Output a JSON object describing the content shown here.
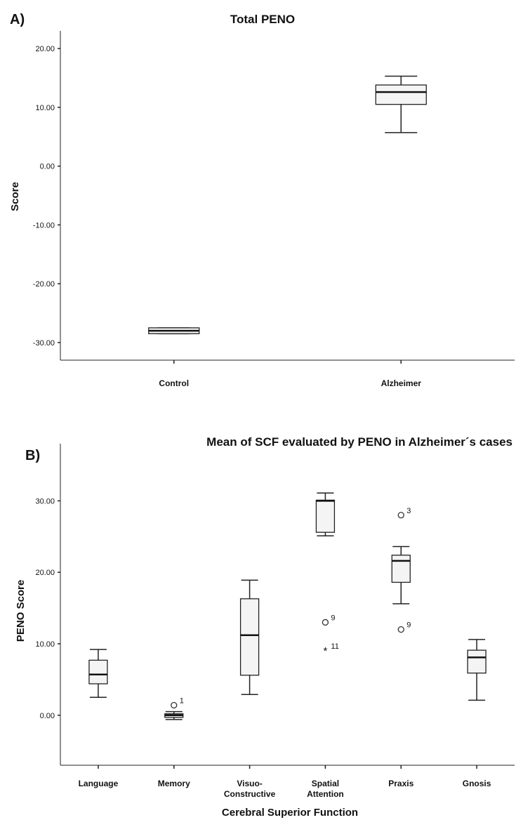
{
  "chart_data": [
    {
      "type": "boxplot",
      "panel_label": "A)",
      "title": "Total PENO",
      "xlabel": "",
      "ylabel": "Score",
      "ylim": [
        -33,
        23
      ],
      "yticks": [
        "20.00",
        "10.00",
        "0.00",
        "-10.00",
        "-20.00",
        "-30.00"
      ],
      "ytick_values": [
        20,
        10,
        0,
        -10,
        -20,
        -30
      ],
      "grid": false,
      "categories": [
        "Control",
        "Alzheimer"
      ],
      "boxes": [
        {
          "category": "Control",
          "min": -28.5,
          "q1": -28.5,
          "median": -28.0,
          "q3": -27.5,
          "max": -27.5,
          "outliers": []
        },
        {
          "category": "Alzheimer",
          "min": 5.7,
          "q1": 10.5,
          "median": 12.6,
          "q3": 13.8,
          "max": 15.3,
          "outliers": []
        }
      ]
    },
    {
      "type": "boxplot",
      "panel_label": "B)",
      "title": "Mean of SCF evaluated by PENO in Alzheimer´s cases",
      "xlabel": "Cerebral Superior Function",
      "ylabel": "PENO Score",
      "ylim": [
        -7,
        38
      ],
      "yticks": [
        "30.00",
        "20.00",
        "10.00",
        "0.00"
      ],
      "ytick_values": [
        30,
        20,
        10,
        0
      ],
      "grid": false,
      "categories": [
        "Language",
        "Memory",
        "Visuo-\nConstructive",
        "Spatial\nAttention",
        "Praxis",
        "Gnosis"
      ],
      "boxes": [
        {
          "category": "Language",
          "min": 2.5,
          "q1": 4.4,
          "median": 5.7,
          "q3": 7.7,
          "max": 9.2,
          "outliers": []
        },
        {
          "category": "Memory",
          "min": -0.6,
          "q1": -0.3,
          "median": 0.0,
          "q3": 0.2,
          "max": 0.5,
          "outliers": [
            {
              "value": 1.4,
              "label": "1",
              "marker": "circle"
            }
          ]
        },
        {
          "category": "Visuo-Constructive",
          "min": 2.9,
          "q1": 5.6,
          "median": 11.2,
          "q3": 16.3,
          "max": 18.9,
          "outliers": []
        },
        {
          "category": "Spatial Attention",
          "min": 25.1,
          "q1": 25.6,
          "median": 30.0,
          "q3": 30.1,
          "max": 31.1,
          "outliers": [
            {
              "value": 13.0,
              "label": "9",
              "marker": "circle"
            },
            {
              "value": 9.0,
              "label": "11",
              "marker": "star"
            }
          ]
        },
        {
          "category": "Praxis",
          "min": 15.6,
          "q1": 18.6,
          "median": 21.6,
          "q3": 22.4,
          "max": 23.6,
          "outliers": [
            {
              "value": 28.0,
              "label": "3",
              "marker": "circle"
            },
            {
              "value": 12.0,
              "label": "9",
              "marker": "circle"
            }
          ]
        },
        {
          "category": "Gnosis",
          "min": 2.1,
          "q1": 5.9,
          "median": 8.1,
          "q3": 9.1,
          "max": 10.6,
          "outliers": []
        }
      ]
    }
  ]
}
